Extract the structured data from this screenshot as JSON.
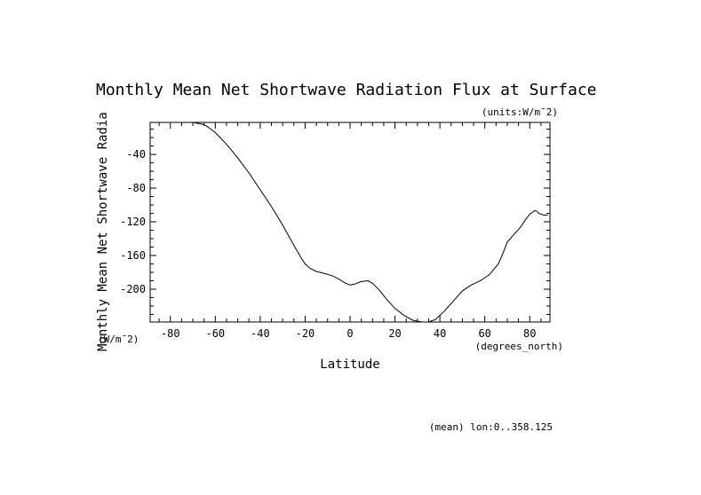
{
  "chart_data": {
    "type": "line",
    "title": "Monthly Mean Net Shortwave Radiation Flux at Surface",
    "units_note": "(units:W/m^2)",
    "xlabel": "Latitude",
    "xunits": "(degrees_north)",
    "ylabel": "Monthly Mean Net Shortwave Radia",
    "yunits": "(W/m^2)",
    "footnote": "(mean) lon:0..358.125",
    "xlim": [
      -89,
      89
    ],
    "ylim": [
      -239,
      -2
    ],
    "xticks": [
      -80,
      -60,
      -40,
      -20,
      0,
      20,
      40,
      60,
      80
    ],
    "xtick_labels": [
      "-80",
      "-60",
      "-40",
      "-20",
      "0",
      "20",
      "40",
      "60",
      "80"
    ],
    "yticks": [
      -40,
      -80,
      -120,
      -160,
      -200
    ],
    "ytick_labels": [
      "-40",
      "-80",
      "-120",
      "-160",
      "-200"
    ],
    "grid": false,
    "series": [
      {
        "name": "",
        "x": [
          -75,
          -70,
          -66,
          -64,
          -60,
          -55,
          -50,
          -45,
          -40,
          -35,
          -30,
          -25,
          -22,
          -20,
          -18,
          -15,
          -12,
          -8,
          -5,
          -2,
          0,
          2,
          5,
          8,
          10,
          13,
          16,
          20,
          24,
          28,
          32,
          35,
          38,
          42,
          46,
          50,
          54,
          58,
          62,
          66,
          68,
          70,
          72,
          74,
          76,
          78,
          80,
          82,
          83,
          84,
          86,
          88
        ],
        "y": [
          -2,
          -2,
          -4,
          -6,
          -14,
          -28,
          -44,
          -62,
          -82,
          -102,
          -124,
          -148,
          -162,
          -170,
          -175,
          -179,
          -181,
          -184,
          -188,
          -193,
          -195,
          -194,
          -191,
          -190,
          -193,
          -201,
          -211,
          -223,
          -231,
          -237,
          -239,
          -239,
          -236,
          -226,
          -214,
          -202,
          -195,
          -190,
          -183,
          -170,
          -158,
          -144,
          -138,
          -132,
          -126,
          -118,
          -111,
          -107,
          -107,
          -110,
          -112,
          -112
        ]
      }
    ]
  }
}
